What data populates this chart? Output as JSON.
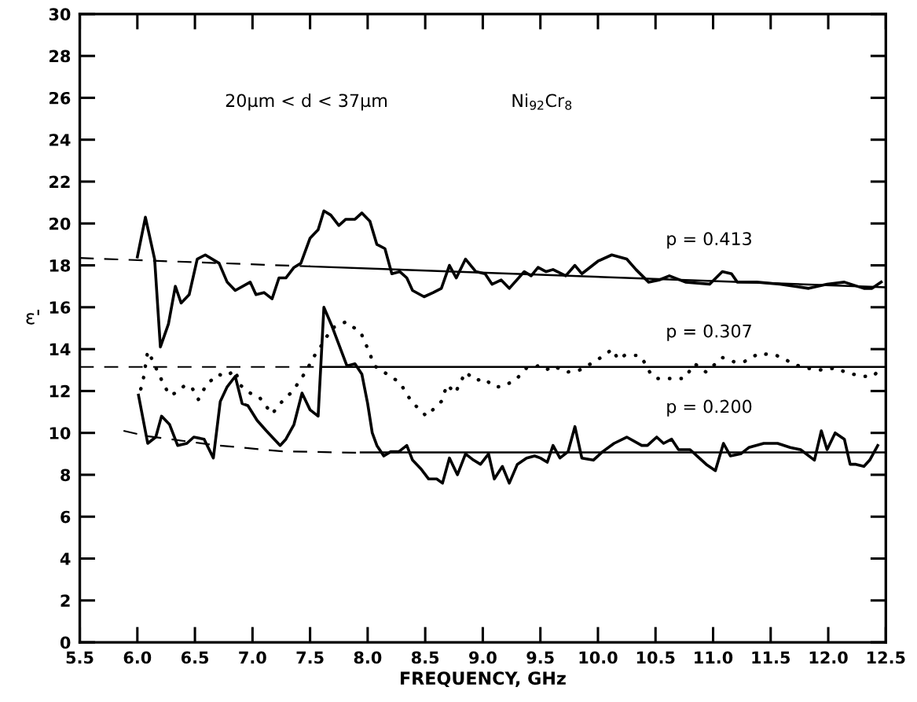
{
  "chart_data": {
    "type": "line",
    "xlabel": "FREQUENCY, GHz",
    "ylabel": "ε'",
    "xlim": [
      5.5,
      12.5
    ],
    "ylim": [
      0,
      30
    ],
    "xticks": [
      5.5,
      {
        "value": 6.0,
        "label": "6.0"
      },
      6.5,
      {
        "value": 7.0,
        "label": "7.0"
      },
      7.5,
      {
        "value": 8.0,
        "label": "8.0"
      },
      8.5,
      {
        "value": 9.0,
        "label": "9.0"
      },
      9.5,
      {
        "value": 10.0,
        "label": "10.0"
      },
      10.5,
      {
        "value": 11.0,
        "label": "11.0"
      },
      11.5,
      {
        "value": 12.0,
        "label": "12.0"
      },
      12.5
    ],
    "yticks": [
      0,
      2,
      4,
      6,
      8,
      10,
      12,
      14,
      16,
      18,
      20,
      22,
      24,
      26,
      28,
      30
    ],
    "grid": false,
    "annotations": [
      "20μm < d < 37μm",
      "Ni$_{92}$Cr$_{8}$",
      "p = 0.413",
      "p = 0.307",
      "p = 0.200"
    ],
    "series": [
      {
        "color": "#000000",
        "line_style": "solid",
        "x": [
          6.0,
          6.07,
          6.15,
          6.2,
          6.27,
          6.33,
          6.38,
          6.45,
          6.52,
          6.59,
          6.71,
          6.78,
          6.85,
          6.98,
          7.03,
          7.1,
          7.17,
          7.23,
          7.29,
          7.36,
          7.42,
          7.5,
          7.57,
          7.62,
          7.68,
          7.75,
          7.81,
          7.89,
          7.95,
          8.02,
          8.08,
          8.15,
          8.21,
          8.28,
          8.34,
          8.39,
          8.49,
          8.57,
          8.64,
          8.71,
          8.77,
          8.85,
          8.94,
          9.02,
          9.08,
          9.16,
          9.23,
          9.36,
          9.42,
          9.48,
          9.55,
          9.61,
          9.72,
          9.8,
          9.86,
          9.93,
          10.0,
          10.12,
          10.25,
          10.33,
          10.44,
          10.53,
          10.62,
          10.76,
          10.97,
          11.08,
          11.16,
          11.21,
          11.38,
          11.58,
          11.83,
          11.99,
          12.14,
          12.31,
          12.38,
          12.46
        ],
        "values": [
          18.4,
          20.3,
          18.3,
          14.1,
          15.2,
          17.0,
          16.2,
          16.6,
          18.3,
          18.5,
          18.1,
          17.2,
          16.8,
          17.2,
          16.6,
          16.7,
          16.4,
          17.4,
          17.4,
          17.9,
          18.1,
          19.3,
          19.7,
          20.6,
          20.4,
          19.9,
          20.2,
          20.2,
          20.5,
          20.1,
          19.0,
          18.8,
          17.6,
          17.7,
          17.4,
          16.8,
          16.5,
          16.7,
          16.9,
          18.0,
          17.4,
          18.3,
          17.7,
          17.6,
          17.1,
          17.3,
          16.9,
          17.7,
          17.5,
          17.9,
          17.7,
          17.8,
          17.5,
          18.0,
          17.6,
          17.9,
          18.2,
          18.5,
          18.3,
          17.8,
          17.2,
          17.3,
          17.5,
          17.2,
          17.1,
          17.7,
          17.6,
          17.2,
          17.2,
          17.1,
          16.9,
          17.1,
          17.2,
          16.9,
          16.9,
          17.2
        ]
      },
      {
        "color": "#000000",
        "line_style": "dotted",
        "x": [
          6.03,
          6.05,
          6.09,
          6.12,
          6.17,
          6.23,
          6.28,
          6.33,
          6.42,
          6.48,
          6.53,
          6.6,
          6.7,
          6.77,
          6.85,
          6.89,
          6.98,
          7.06,
          7.17,
          7.24,
          7.35,
          7.46,
          7.54,
          7.59,
          7.69,
          7.81,
          7.94,
          8.01,
          8.06,
          8.17,
          8.28,
          8.38,
          8.51,
          8.64,
          8.69,
          8.76,
          8.85,
          8.94,
          9.01,
          9.1,
          9.16,
          9.28,
          9.38,
          9.48,
          9.55,
          9.61,
          9.73,
          9.84,
          9.97,
          10.08,
          10.12,
          10.18,
          10.23,
          10.36,
          10.4,
          10.45,
          10.5,
          10.62,
          10.75,
          10.84,
          10.94,
          11.08,
          11.18,
          11.27,
          11.4,
          11.55,
          11.63,
          11.69,
          11.8,
          11.95,
          12.06,
          12.15,
          12.22,
          12.31,
          12.39,
          12.44
        ],
        "values": [
          12.1,
          12.5,
          13.9,
          13.6,
          13.0,
          12.3,
          11.8,
          11.9,
          12.3,
          12.1,
          11.6,
          12.3,
          12.8,
          12.7,
          13.0,
          12.3,
          11.9,
          11.7,
          10.9,
          11.4,
          12.0,
          12.9,
          13.7,
          14.1,
          15.0,
          15.3,
          14.8,
          13.9,
          13.2,
          12.8,
          12.4,
          11.5,
          10.8,
          11.5,
          12.3,
          11.9,
          12.9,
          12.5,
          12.6,
          12.2,
          12.2,
          12.5,
          13.1,
          13.2,
          13.0,
          13.2,
          12.9,
          13.0,
          13.4,
          13.8,
          14.0,
          13.5,
          13.7,
          13.7,
          13.4,
          12.9,
          12.6,
          12.6,
          12.6,
          13.3,
          12.9,
          13.6,
          13.4,
          13.4,
          13.8,
          13.7,
          13.5,
          13.3,
          13.1,
          13.0,
          13.1,
          12.9,
          12.8,
          12.7,
          12.7,
          13.0
        ]
      },
      {
        "color": "#000000",
        "line_style": "solid",
        "x": [
          6.01,
          6.09,
          6.16,
          6.21,
          6.28,
          6.35,
          6.43,
          6.49,
          6.58,
          6.66,
          6.72,
          6.78,
          6.85,
          6.91,
          6.96,
          7.04,
          7.12,
          7.24,
          7.29,
          7.36,
          7.43,
          7.5,
          7.57,
          7.62,
          7.69,
          7.82,
          7.89,
          7.95,
          8.0,
          8.04,
          8.08,
          8.14,
          8.2,
          8.27,
          8.34,
          8.39,
          8.46,
          8.53,
          8.6,
          8.65,
          8.71,
          8.78,
          8.85,
          8.92,
          8.98,
          9.05,
          9.1,
          9.17,
          9.23,
          9.3,
          9.38,
          9.45,
          9.5,
          9.56,
          9.61,
          9.67,
          9.74,
          9.8,
          9.86,
          9.96,
          10.04,
          10.14,
          10.25,
          10.38,
          10.43,
          10.51,
          10.57,
          10.64,
          10.7,
          10.8,
          10.88,
          10.94,
          11.02,
          11.09,
          11.15,
          11.24,
          11.31,
          11.44,
          11.56,
          11.67,
          11.76,
          11.88,
          11.94,
          11.99,
          12.06,
          12.14,
          12.19,
          12.24,
          12.31,
          12.36,
          12.43
        ],
        "values": [
          11.8,
          9.5,
          9.8,
          10.8,
          10.4,
          9.4,
          9.5,
          9.8,
          9.7,
          8.8,
          11.5,
          12.2,
          12.7,
          11.4,
          11.3,
          10.6,
          10.1,
          9.4,
          9.7,
          10.4,
          11.9,
          11.1,
          10.8,
          16.0,
          15.1,
          13.2,
          13.3,
          12.8,
          11.4,
          10.0,
          9.4,
          8.9,
          9.1,
          9.1,
          9.4,
          8.7,
          8.3,
          7.8,
          7.8,
          7.6,
          8.8,
          8.0,
          9.0,
          8.7,
          8.5,
          9.0,
          7.8,
          8.4,
          7.6,
          8.5,
          8.8,
          8.9,
          8.8,
          8.6,
          9.4,
          8.8,
          9.1,
          10.3,
          8.8,
          8.7,
          9.1,
          9.5,
          9.8,
          9.4,
          9.4,
          9.8,
          9.5,
          9.7,
          9.2,
          9.2,
          8.8,
          8.5,
          8.2,
          9.5,
          8.9,
          9.0,
          9.3,
          9.5,
          9.5,
          9.3,
          9.2,
          8.7,
          10.1,
          9.2,
          10.0,
          9.7,
          8.5,
          8.5,
          8.4,
          8.7,
          9.4
        ]
      },
      {
        "color": "#000000",
        "line_style": "dashed",
        "x": [
          5.5,
          7.5
        ],
        "values": [
          18.35,
          17.95
        ]
      },
      {
        "color": "#000000",
        "line_style": "solid",
        "x": [
          7.5,
          12.5
        ],
        "values": [
          17.95,
          16.95
        ]
      },
      {
        "color": "#000000",
        "line_style": "dashed",
        "x": [
          5.5,
          7.6
        ],
        "values": [
          13.15,
          13.15
        ]
      },
      {
        "color": "#000000",
        "line_style": "solid",
        "x": [
          7.6,
          12.5
        ],
        "values": [
          13.15,
          13.15
        ]
      },
      {
        "color": "#000000",
        "line_style": "dashed",
        "x": [
          5.88,
          6.08,
          6.67,
          7.26,
          7.94
        ],
        "values": [
          10.1,
          9.85,
          9.42,
          9.12,
          9.05
        ]
      },
      {
        "color": "#000000",
        "line_style": "solid",
        "x": [
          7.94,
          12.5
        ],
        "values": [
          9.07,
          9.07
        ]
      }
    ]
  }
}
